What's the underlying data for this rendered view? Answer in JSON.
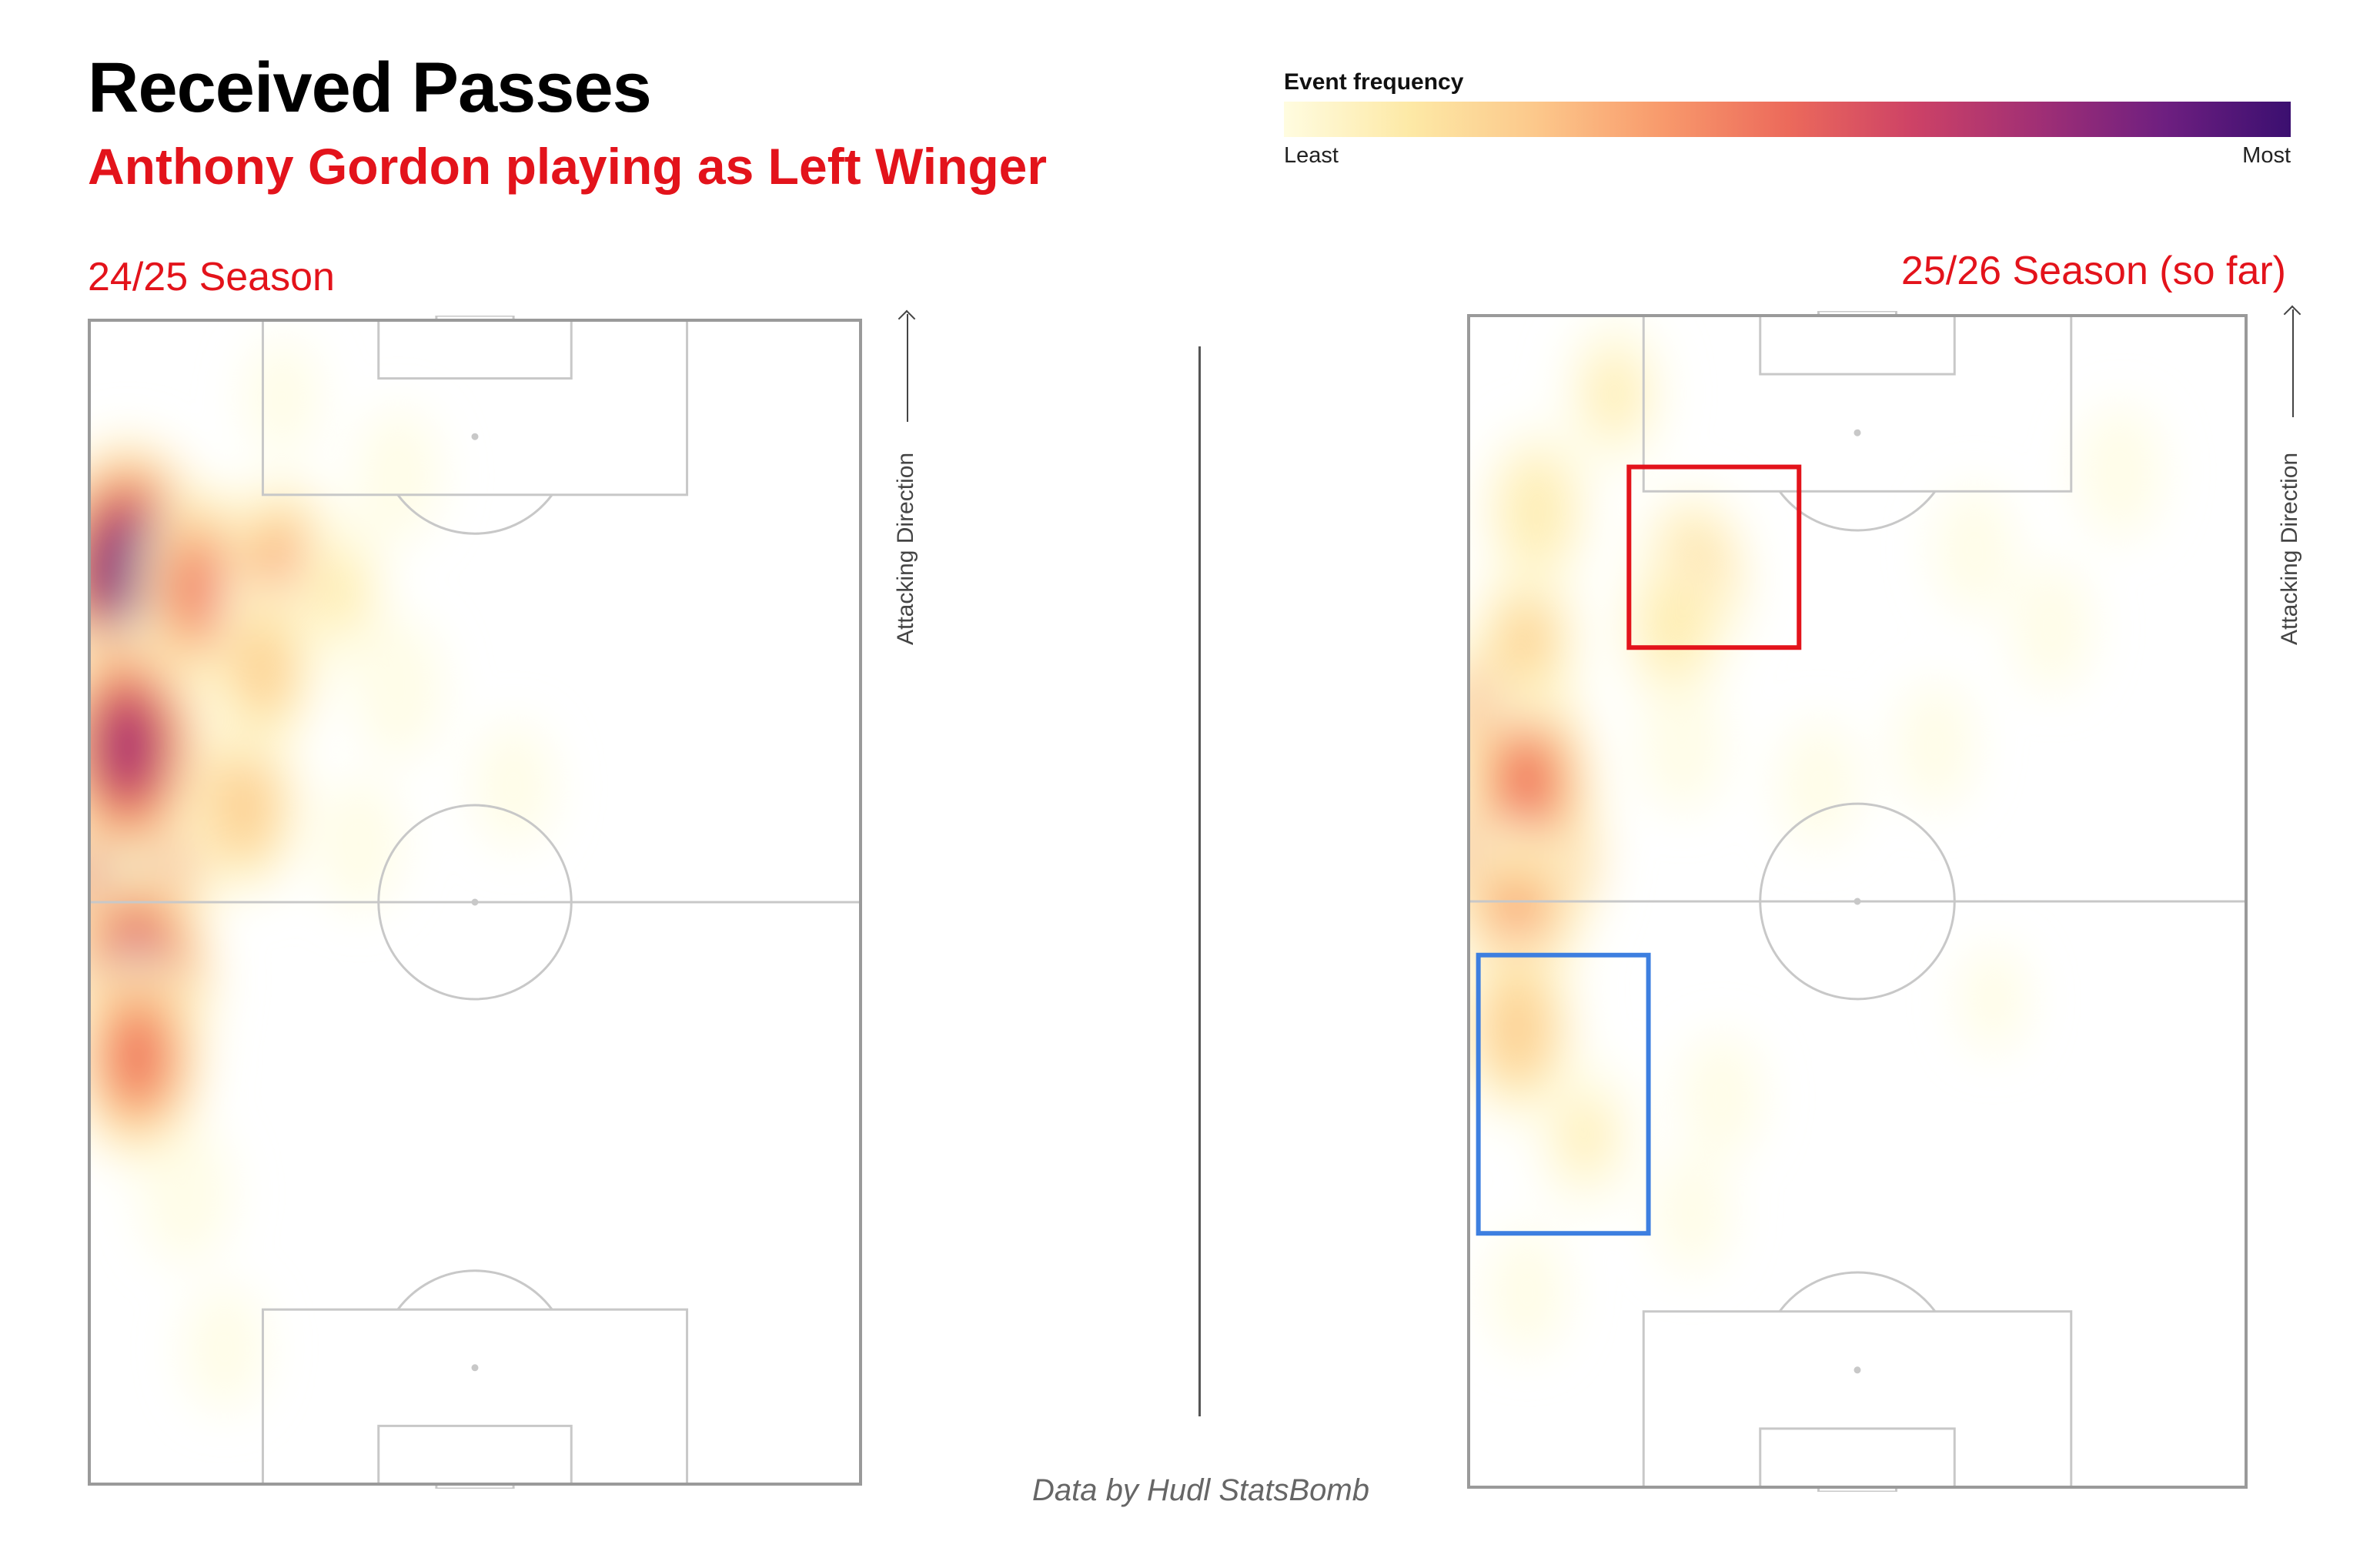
{
  "title": "Received Passes",
  "subtitle": "Anthony Gordon playing as Left Winger",
  "colors": {
    "title": "#000000",
    "accent_red": "#e3131b",
    "highlight_red_box": "#e3131b",
    "highlight_blue_box": "#3d7fe0",
    "pitch_outline": "#9a9a9a",
    "pitch_lines": "#c8c8c8",
    "colormap": [
      "#fffce0",
      "#fde9a6",
      "#fcc88b",
      "#f89a6c",
      "#ec6a5b",
      "#cd4266",
      "#a02f75",
      "#6e1f80",
      "#3b0f70"
    ]
  },
  "legend": {
    "title": "Event frequency",
    "min_label": "Least",
    "max_label": "Most"
  },
  "attacking_direction_label": "Attacking Direction",
  "credit": "Data by Hudl StatsBomb",
  "chart_data": [
    {
      "type": "heatmap",
      "title": "24/25 Season",
      "xlim": [
        0,
        80
      ],
      "ylim": [
        0,
        120
      ],
      "attacking_direction": "up",
      "hotspots": [
        {
          "x": 4,
          "y": 94,
          "intensity": 1.0
        },
        {
          "x": 4,
          "y": 62,
          "intensity": 0.95
        },
        {
          "x": 4,
          "y": 76,
          "intensity": 0.85
        },
        {
          "x": 5,
          "y": 52,
          "intensity": 0.8
        },
        {
          "x": 5,
          "y": 44,
          "intensity": 0.6
        },
        {
          "x": 12,
          "y": 92,
          "intensity": 0.6
        },
        {
          "x": 20,
          "y": 94,
          "intensity": 0.45
        },
        {
          "x": 16,
          "y": 70,
          "intensity": 0.4
        },
        {
          "x": 18,
          "y": 84,
          "intensity": 0.35
        },
        {
          "x": 26,
          "y": 92,
          "intensity": 0.2
        },
        {
          "x": 32,
          "y": 82,
          "intensity": 0.15
        },
        {
          "x": 28,
          "y": 66,
          "intensity": 0.12
        },
        {
          "x": 10,
          "y": 30,
          "intensity": 0.15
        },
        {
          "x": 14,
          "y": 14,
          "intensity": 0.1
        },
        {
          "x": 32,
          "y": 104,
          "intensity": 0.12
        },
        {
          "x": 44,
          "y": 72,
          "intensity": 0.1
        },
        {
          "x": 20,
          "y": 112,
          "intensity": 0.08
        }
      ]
    },
    {
      "type": "heatmap",
      "title": "25/26 Season (so far)",
      "xlim": [
        0,
        80
      ],
      "ylim": [
        0,
        120
      ],
      "attacking_direction": "up",
      "hotspots": [
        {
          "x": 5,
          "y": 66,
          "intensity": 1.0
        },
        {
          "x": 4,
          "y": 78,
          "intensity": 0.7
        },
        {
          "x": 6,
          "y": 72,
          "intensity": 0.6
        },
        {
          "x": 5,
          "y": 58,
          "intensity": 0.45
        },
        {
          "x": 5,
          "y": 47,
          "intensity": 0.4
        },
        {
          "x": 6,
          "y": 87,
          "intensity": 0.3
        },
        {
          "x": 7,
          "y": 100,
          "intensity": 0.28
        },
        {
          "x": 23,
          "y": 93,
          "intensity": 0.35
        },
        {
          "x": 21,
          "y": 88,
          "intensity": 0.25
        },
        {
          "x": 15,
          "y": 112,
          "intensity": 0.2
        },
        {
          "x": 12,
          "y": 36,
          "intensity": 0.18
        },
        {
          "x": 22,
          "y": 76,
          "intensity": 0.12
        },
        {
          "x": 36,
          "y": 72,
          "intensity": 0.1
        },
        {
          "x": 48,
          "y": 76,
          "intensity": 0.1
        },
        {
          "x": 60,
          "y": 88,
          "intensity": 0.1
        },
        {
          "x": 52,
          "y": 96,
          "intensity": 0.1
        },
        {
          "x": 26,
          "y": 40,
          "intensity": 0.1
        },
        {
          "x": 6,
          "y": 20,
          "intensity": 0.1
        },
        {
          "x": 23,
          "y": 28,
          "intensity": 0.08
        },
        {
          "x": 67,
          "y": 104,
          "intensity": 0.12
        },
        {
          "x": 54,
          "y": 50,
          "intensity": 0.06
        }
      ],
      "highlight_boxes": [
        {
          "color": "red",
          "x": [
            16.5,
            34
          ],
          "y": [
            86,
            104.5
          ]
        },
        {
          "color": "blue",
          "x": [
            1,
            18.5
          ],
          "y": [
            26,
            54.5
          ]
        }
      ]
    }
  ]
}
